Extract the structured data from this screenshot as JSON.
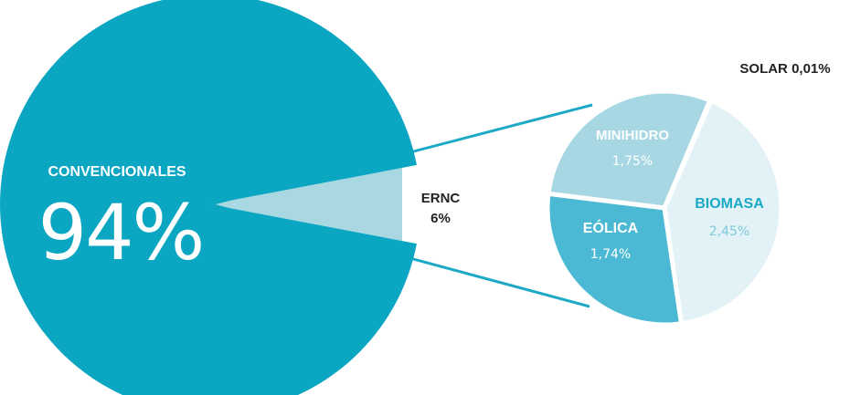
{
  "chart_data": {
    "type": "pie",
    "main_pie": {
      "slices": [
        {
          "label": "CONVENCIONALES",
          "display": "94%",
          "value": 94,
          "color": "#0aa6c2"
        },
        {
          "label": "ERNC",
          "display": "6%",
          "value": 6,
          "color": "#a9d8e2"
        }
      ]
    },
    "breakdown_pie": {
      "slices": [
        {
          "label": "MINIHIDRO",
          "display": "1,75%",
          "value": 1.75,
          "color": "#a6d7e3"
        },
        {
          "label": "BIOMASA",
          "display": "2,45%",
          "value": 2.45,
          "color": "#e2f2f6"
        },
        {
          "label": "EÓLICA",
          "display": "1,74%",
          "value": 1.74,
          "color": "#4bb9d3"
        },
        {
          "label": "SOLAR",
          "display": "0,01%",
          "value": 0.01,
          "color": "#e2f2f6"
        }
      ]
    },
    "colors": {
      "connector": "#1ba9c6",
      "separator": "#ffffff",
      "dark_text": "#222222",
      "accent_text": "#1ba9c6"
    }
  }
}
